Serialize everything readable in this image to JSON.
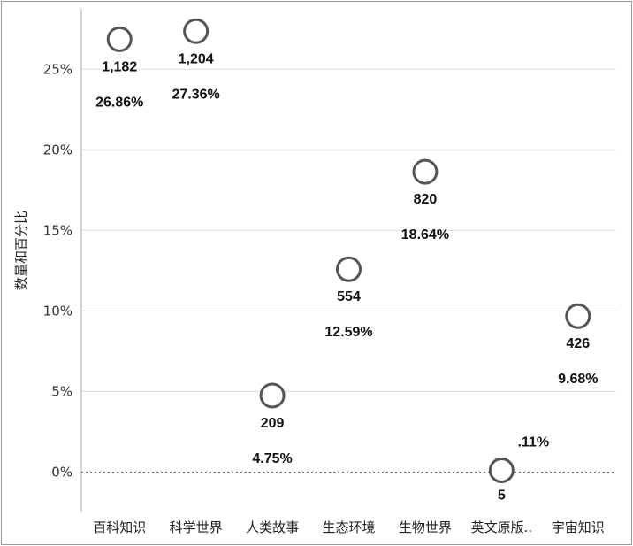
{
  "chart_data": {
    "type": "scatter",
    "ylabel": "数量和百分比",
    "ylim": [
      -2.5,
      28.2
    ],
    "y_ticks": [
      "0%",
      "5%",
      "10%",
      "15%",
      "20%",
      "25%"
    ],
    "y_tick_values": [
      0,
      5,
      10,
      15,
      20,
      25
    ],
    "zero_line": "dotted",
    "grid": "horizontal",
    "categories": [
      "百科知识",
      "科学世界",
      "人类故事",
      "生态环境",
      "生物世界",
      "英文原版..",
      "宇宙知识"
    ],
    "points": [
      {
        "category": "百科知识",
        "percent": 26.86,
        "count_label": "1,182",
        "percent_label": "26.86%"
      },
      {
        "category": "科学世界",
        "percent": 27.36,
        "count_label": "1,204",
        "percent_label": "27.36%"
      },
      {
        "category": "人类故事",
        "percent": 4.75,
        "count_label": "209",
        "percent_label": "4.75%"
      },
      {
        "category": "生态环境",
        "percent": 12.59,
        "count_label": "554",
        "percent_label": "12.59%"
      },
      {
        "category": "生物世界",
        "percent": 18.64,
        "count_label": "820",
        "percent_label": "18.64%"
      },
      {
        "category": "英文原版..",
        "percent": 0.11,
        "count_label": "5",
        "percent_label": ".11%"
      },
      {
        "category": "宇宙知识",
        "percent": 9.68,
        "count_label": "426",
        "percent_label": "9.68%"
      }
    ],
    "colors": {
      "marker": "#555555",
      "grid": "#dddddd",
      "axis": "#aaaaaa",
      "zero": "#666666"
    }
  }
}
